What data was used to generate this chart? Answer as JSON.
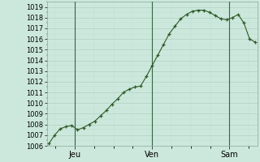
{
  "background_color": "#cce8dc",
  "plot_bg_color": "#cce8dc",
  "grid_major_color": "#aaccbb",
  "grid_minor_color": "#bbddd0",
  "line_color": "#2d5a27",
  "marker_color": "#2d5a27",
  "vline_color": "#336644",
  "ylim": [
    1006,
    1019.5
  ],
  "yticks": [
    1006,
    1007,
    1008,
    1009,
    1010,
    1011,
    1012,
    1013,
    1014,
    1015,
    1016,
    1017,
    1018,
    1019
  ],
  "xtick_labels": [
    "Jeu",
    "Ven",
    "Sam"
  ],
  "xtick_positions": [
    0.125,
    0.5,
    0.875
  ],
  "vline_positions": [
    0.125,
    0.5,
    0.875
  ],
  "x_values": [
    0.0,
    0.0278,
    0.0556,
    0.0833,
    0.1111,
    0.1389,
    0.1667,
    0.1944,
    0.2222,
    0.25,
    0.2778,
    0.3056,
    0.3333,
    0.3611,
    0.3889,
    0.4167,
    0.4444,
    0.4722,
    0.5,
    0.5278,
    0.5556,
    0.5833,
    0.6111,
    0.6389,
    0.6667,
    0.6944,
    0.7222,
    0.75,
    0.7778,
    0.8056,
    0.8333,
    0.8611,
    0.8889,
    0.9167,
    0.9444,
    0.9722,
    1.0
  ],
  "y_values": [
    1006.2,
    1007.0,
    1007.6,
    1007.8,
    1007.9,
    1007.5,
    1007.7,
    1008.0,
    1008.3,
    1008.8,
    1009.3,
    1009.9,
    1010.4,
    1011.0,
    1011.3,
    1011.5,
    1011.6,
    1012.5,
    1013.5,
    1014.5,
    1015.5,
    1016.5,
    1017.2,
    1017.9,
    1018.3,
    1018.6,
    1018.7,
    1018.7,
    1018.5,
    1018.2,
    1017.9,
    1017.8,
    1018.0,
    1018.3,
    1017.5,
    1016.0,
    1015.7
  ],
  "marker_size": 3.5,
  "line_width": 0.8,
  "tick_fontsize": 6,
  "label_fontsize": 7,
  "figwidth": 3.2,
  "figheight": 2.0,
  "dpi": 100
}
